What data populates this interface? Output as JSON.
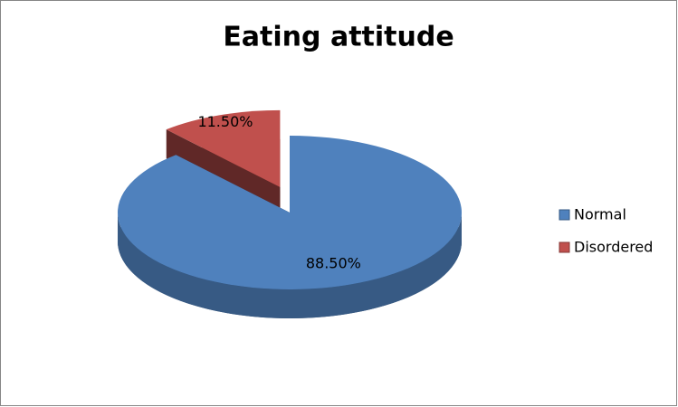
{
  "chart_data": {
    "type": "pie",
    "title": "Eating attitude",
    "categories": [
      "Normal",
      "Disordered"
    ],
    "values": [
      88.5,
      11.5
    ],
    "value_labels": [
      "88.50%",
      "11.50%"
    ],
    "colors": [
      "#4f81bd",
      "#c0504d"
    ],
    "legend": "right"
  }
}
